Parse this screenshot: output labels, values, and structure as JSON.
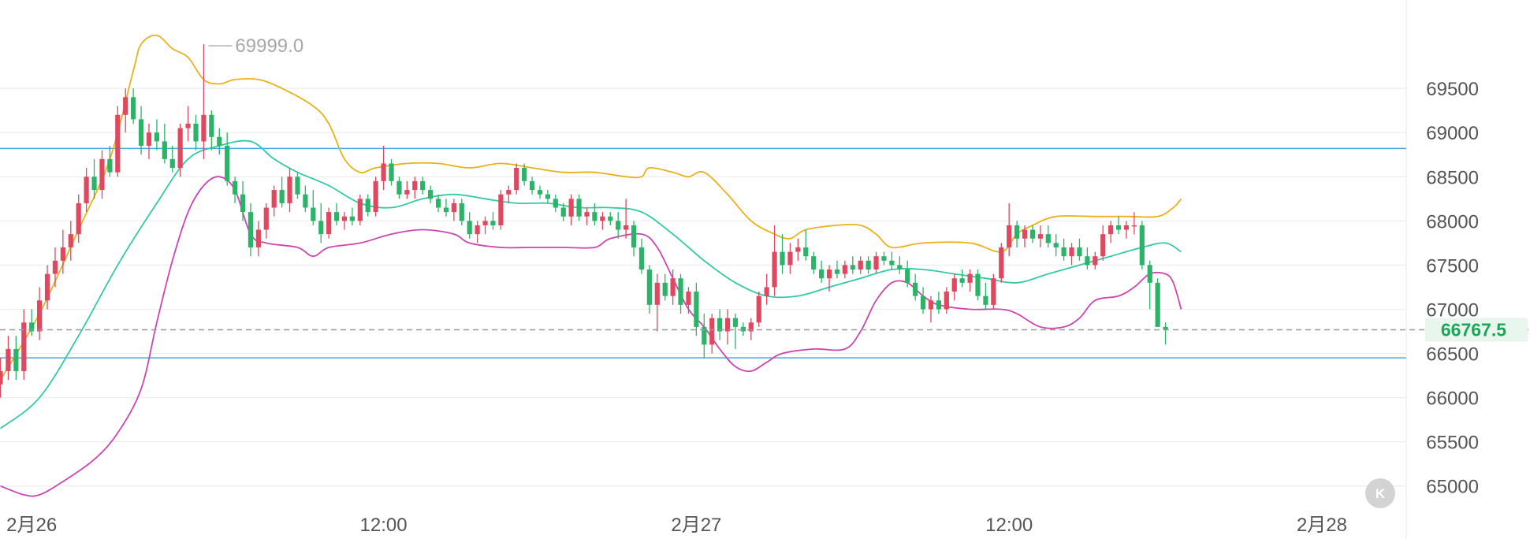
{
  "chart_data": {
    "type": "candlestick",
    "title": "",
    "ylim": [
      64400,
      70500
    ],
    "y_ticks": [
      65000,
      65500,
      66000,
      66500,
      67000,
      67500,
      68000,
      68500,
      69000,
      69500
    ],
    "y_tick_labels": [
      "65000",
      "65500",
      "66000",
      "66500",
      "67000",
      "67500",
      "68000",
      "68500",
      "69000",
      "69500"
    ],
    "x_ticks": [
      {
        "label": "2月26",
        "index": 4
      },
      {
        "label": "12:00",
        "index": 49
      },
      {
        "label": "2月27",
        "index": 89
      },
      {
        "label": "12:00",
        "index": 129
      },
      {
        "label": "2月28",
        "index": 169
      }
    ],
    "high_marker": {
      "label": "69999.0",
      "value": 69999.0,
      "index": 26
    },
    "last_price": {
      "label": "66767.5",
      "value": 66767.5
    },
    "horizontal_lines": [
      68820,
      66450
    ],
    "colors": {
      "up": "#e0485f",
      "down": "#2bb468",
      "upper_band": "#e8b21a",
      "middle_band": "#33c9a6",
      "lower_band": "#cc46b2",
      "hline": "#4aa8e0",
      "price_tag_bg": "#e8f6ee",
      "price_tag_text": "#1fa55a",
      "grid": "#eeeeee"
    },
    "candles": [
      [
        66150,
        66450,
        66000,
        66300
      ],
      [
        66300,
        66700,
        66200,
        66550
      ],
      [
        66550,
        66700,
        66200,
        66300
      ],
      [
        66300,
        67000,
        66200,
        66850
      ],
      [
        66850,
        67000,
        66700,
        66750
      ],
      [
        66750,
        67250,
        66650,
        67100
      ],
      [
        67100,
        67500,
        67000,
        67400
      ],
      [
        67400,
        67700,
        67250,
        67550
      ],
      [
        67550,
        67900,
        67400,
        67700
      ],
      [
        67700,
        68000,
        67550,
        67850
      ],
      [
        67850,
        68300,
        67750,
        68200
      ],
      [
        68200,
        68600,
        68100,
        68500
      ],
      [
        68500,
        68700,
        68250,
        68350
      ],
      [
        68350,
        68800,
        68250,
        68700
      ],
      [
        68700,
        68850,
        68500,
        68550
      ],
      [
        68550,
        69300,
        68500,
        69200
      ],
      [
        69200,
        69500,
        69000,
        69400
      ],
      [
        69400,
        69500,
        69100,
        69150
      ],
      [
        69150,
        69300,
        68750,
        68850
      ],
      [
        68850,
        69100,
        68700,
        69000
      ],
      [
        69000,
        69150,
        68800,
        68900
      ],
      [
        68900,
        69100,
        68650,
        68700
      ],
      [
        68700,
        68850,
        68550,
        68600
      ],
      [
        68600,
        69100,
        68500,
        69050
      ],
      [
        69050,
        69300,
        68900,
        69100
      ],
      [
        69100,
        69200,
        68800,
        68900
      ],
      [
        68900,
        69999,
        68700,
        69200
      ],
      [
        69200,
        69250,
        68800,
        68950
      ],
      [
        68950,
        69050,
        68750,
        68850
      ],
      [
        68850,
        69000,
        68400,
        68450
      ],
      [
        68450,
        68500,
        68200,
        68300
      ],
      [
        68300,
        68450,
        68000,
        68100
      ],
      [
        68100,
        68200,
        67600,
        67700
      ],
      [
        67700,
        68000,
        67600,
        67900
      ],
      [
        67900,
        68200,
        67800,
        68150
      ],
      [
        68150,
        68400,
        68050,
        68350
      ],
      [
        68350,
        68500,
        68150,
        68200
      ],
      [
        68200,
        68600,
        68100,
        68500
      ],
      [
        68500,
        68550,
        68250,
        68300
      ],
      [
        68300,
        68400,
        68100,
        68150
      ],
      [
        68150,
        68350,
        67950,
        68000
      ],
      [
        68000,
        68200,
        67750,
        67850
      ],
      [
        67850,
        68150,
        67800,
        68100
      ],
      [
        68100,
        68200,
        67950,
        68000
      ],
      [
        68000,
        68100,
        67900,
        68050
      ],
      [
        68050,
        68150,
        67950,
        68000
      ],
      [
        68000,
        68300,
        67950,
        68250
      ],
      [
        68250,
        68300,
        68050,
        68100
      ],
      [
        68100,
        68500,
        68050,
        68450
      ],
      [
        68450,
        68850,
        68350,
        68650
      ],
      [
        68650,
        68700,
        68400,
        68450
      ],
      [
        68450,
        68500,
        68250,
        68300
      ],
      [
        68300,
        68450,
        68250,
        68350
      ],
      [
        68350,
        68500,
        68250,
        68450
      ],
      [
        68450,
        68500,
        68300,
        68350
      ],
      [
        68350,
        68400,
        68200,
        68250
      ],
      [
        68250,
        68300,
        68100,
        68150
      ],
      [
        68150,
        68250,
        68050,
        68100
      ],
      [
        68100,
        68250,
        68000,
        68200
      ],
      [
        68200,
        68250,
        67950,
        68000
      ],
      [
        68000,
        68100,
        67800,
        67850
      ],
      [
        67850,
        68000,
        67750,
        67950
      ],
      [
        67950,
        68050,
        67850,
        68000
      ],
      [
        68000,
        68100,
        67900,
        67950
      ],
      [
        67950,
        68350,
        67900,
        68300
      ],
      [
        68300,
        68400,
        68200,
        68350
      ],
      [
        68350,
        68650,
        68300,
        68600
      ],
      [
        68600,
        68650,
        68400,
        68450
      ],
      [
        68450,
        68500,
        68300,
        68350
      ],
      [
        68350,
        68400,
        68250,
        68300
      ],
      [
        68300,
        68350,
        68200,
        68250
      ],
      [
        68250,
        68300,
        68100,
        68150
      ],
      [
        68150,
        68200,
        68000,
        68050
      ],
      [
        68050,
        68300,
        67950,
        68250
      ],
      [
        68250,
        68300,
        68000,
        68050
      ],
      [
        68050,
        68150,
        67950,
        68100
      ],
      [
        68100,
        68200,
        67950,
        68000
      ],
      [
        68000,
        68100,
        67900,
        68050
      ],
      [
        68050,
        68100,
        67950,
        68000
      ],
      [
        68000,
        68100,
        67800,
        67900
      ],
      [
        67900,
        68250,
        67800,
        67950
      ],
      [
        67950,
        68000,
        67600,
        67700
      ],
      [
        67700,
        67800,
        67400,
        67450
      ],
      [
        67450,
        67500,
        66950,
        67050
      ],
      [
        67050,
        67400,
        66750,
        67300
      ],
      [
        67300,
        67400,
        67100,
        67150
      ],
      [
        67150,
        67450,
        67050,
        67350
      ],
      [
        67350,
        67400,
        66950,
        67050
      ],
      [
        67050,
        67250,
        66950,
        67200
      ],
      [
        67200,
        67300,
        66700,
        66800
      ],
      [
        66800,
        66950,
        66450,
        66600
      ],
      [
        66600,
        66950,
        66500,
        66900
      ],
      [
        66900,
        67000,
        66650,
        66750
      ],
      [
        66750,
        67000,
        66600,
        66900
      ],
      [
        66900,
        66950,
        66550,
        66800
      ],
      [
        66800,
        66850,
        66700,
        66750
      ],
      [
        66750,
        66900,
        66650,
        66850
      ],
      [
        66850,
        67200,
        66800,
        67150
      ],
      [
        67150,
        67400,
        67050,
        67250
      ],
      [
        67250,
        67950,
        67150,
        67650
      ],
      [
        67650,
        67850,
        67400,
        67500
      ],
      [
        67500,
        67750,
        67400,
        67650
      ],
      [
        67650,
        67800,
        67550,
        67700
      ],
      [
        67700,
        67900,
        67550,
        67600
      ],
      [
        67600,
        67650,
        67400,
        67450
      ],
      [
        67450,
        67550,
        67300,
        67350
      ],
      [
        67350,
        67500,
        67200,
        67450
      ],
      [
        67450,
        67550,
        67350,
        67400
      ],
      [
        67400,
        67550,
        67350,
        67500
      ],
      [
        67500,
        67600,
        67400,
        67450
      ],
      [
        67450,
        67600,
        67400,
        67550
      ],
      [
        67550,
        67600,
        67400,
        67450
      ],
      [
        67450,
        67650,
        67400,
        67600
      ],
      [
        67600,
        67650,
        67500,
        67550
      ],
      [
        67550,
        67650,
        67450,
        67500
      ],
      [
        67500,
        67600,
        67400,
        67450
      ],
      [
        67450,
        67550,
        67250,
        67300
      ],
      [
        67300,
        67400,
        67100,
        67150
      ],
      [
        67150,
        67250,
        66950,
        67000
      ],
      [
        67000,
        67150,
        66850,
        67100
      ],
      [
        67100,
        67200,
        66950,
        67000
      ],
      [
        67000,
        67250,
        66950,
        67200
      ],
      [
        67200,
        67400,
        67100,
        67350
      ],
      [
        67350,
        67450,
        67250,
        67300
      ],
      [
        67300,
        67450,
        67200,
        67400
      ],
      [
        67400,
        67450,
        67100,
        67150
      ],
      [
        67150,
        67300,
        67000,
        67050
      ],
      [
        67050,
        67400,
        67000,
        67350
      ],
      [
        67350,
        67750,
        67300,
        67700
      ],
      [
        67700,
        68200,
        67600,
        67950
      ],
      [
        67950,
        68000,
        67700,
        67800
      ],
      [
        67800,
        67950,
        67700,
        67900
      ],
      [
        67900,
        67950,
        67750,
        67800
      ],
      [
        67800,
        67950,
        67700,
        67850
      ],
      [
        67850,
        67950,
        67700,
        67750
      ],
      [
        67750,
        67850,
        67600,
        67700
      ],
      [
        67700,
        67800,
        67550,
        67600
      ],
      [
        67600,
        67750,
        67500,
        67700
      ],
      [
        67700,
        67800,
        67550,
        67600
      ],
      [
        67600,
        67700,
        67450,
        67500
      ],
      [
        67500,
        67650,
        67450,
        67600
      ],
      [
        67600,
        67950,
        67550,
        67850
      ],
      [
        67850,
        68000,
        67750,
        67950
      ],
      [
        67950,
        68050,
        67850,
        67900
      ],
      [
        67900,
        68000,
        67800,
        67950
      ],
      [
        67950,
        68100,
        67850,
        67950
      ],
      [
        67950,
        68000,
        67450,
        67500
      ],
      [
        67500,
        67550,
        67000,
        67300
      ],
      [
        67300,
        67350,
        66800,
        66800
      ],
      [
        66800,
        66850,
        66600,
        66767.5
      ]
    ],
    "upper_band": [
      [
        0,
        66200
      ],
      [
        5,
        66950
      ],
      [
        10,
        67900
      ],
      [
        14,
        68700
      ],
      [
        17,
        69700
      ],
      [
        18,
        70000
      ],
      [
        20,
        70100
      ],
      [
        22,
        69950
      ],
      [
        24,
        69850
      ],
      [
        26,
        69600
      ],
      [
        28,
        69550
      ],
      [
        30,
        69600
      ],
      [
        33,
        69600
      ],
      [
        36,
        69500
      ],
      [
        40,
        69300
      ],
      [
        42,
        69100
      ],
      [
        44,
        68700
      ],
      [
        46,
        68550
      ],
      [
        48,
        68600
      ],
      [
        52,
        68650
      ],
      [
        56,
        68650
      ],
      [
        60,
        68600
      ],
      [
        64,
        68650
      ],
      [
        68,
        68600
      ],
      [
        72,
        68550
      ],
      [
        76,
        68550
      ],
      [
        80,
        68500
      ],
      [
        82,
        68500
      ],
      [
        83,
        68600
      ],
      [
        86,
        68550
      ],
      [
        88,
        68500
      ],
      [
        90,
        68550
      ],
      [
        93,
        68300
      ],
      [
        96,
        68000
      ],
      [
        99,
        67850
      ],
      [
        101,
        67800
      ],
      [
        103,
        67900
      ],
      [
        107,
        67950
      ],
      [
        110,
        67950
      ],
      [
        112,
        67850
      ],
      [
        114,
        67700
      ],
      [
        118,
        67750
      ],
      [
        124,
        67750
      ],
      [
        128,
        67650
      ],
      [
        130,
        67850
      ],
      [
        132,
        67950
      ],
      [
        135,
        68050
      ],
      [
        140,
        68050
      ],
      [
        144,
        68050
      ],
      [
        148,
        68050
      ],
      [
        150,
        68150
      ],
      [
        151,
        68250
      ]
    ],
    "middle_band": [
      [
        0,
        65650
      ],
      [
        5,
        66000
      ],
      [
        10,
        66700
      ],
      [
        15,
        67500
      ],
      [
        20,
        68200
      ],
      [
        24,
        68700
      ],
      [
        28,
        68850
      ],
      [
        32,
        68900
      ],
      [
        35,
        68700
      ],
      [
        38,
        68550
      ],
      [
        42,
        68400
      ],
      [
        46,
        68200
      ],
      [
        50,
        68150
      ],
      [
        54,
        68250
      ],
      [
        58,
        68300
      ],
      [
        62,
        68250
      ],
      [
        66,
        68200
      ],
      [
        70,
        68200
      ],
      [
        74,
        68150
      ],
      [
        78,
        68150
      ],
      [
        82,
        68100
      ],
      [
        86,
        67850
      ],
      [
        90,
        67550
      ],
      [
        94,
        67300
      ],
      [
        98,
        67150
      ],
      [
        102,
        67150
      ],
      [
        106,
        67250
      ],
      [
        110,
        67350
      ],
      [
        114,
        67450
      ],
      [
        118,
        67450
      ],
      [
        122,
        67400
      ],
      [
        126,
        67350
      ],
      [
        130,
        67300
      ],
      [
        134,
        67400
      ],
      [
        138,
        67500
      ],
      [
        142,
        67600
      ],
      [
        146,
        67700
      ],
      [
        149,
        67750
      ],
      [
        151,
        67650
      ]
    ],
    "lower_band": [
      [
        0,
        65000
      ],
      [
        3,
        64900
      ],
      [
        5,
        64900
      ],
      [
        8,
        65050
      ],
      [
        12,
        65300
      ],
      [
        15,
        65600
      ],
      [
        18,
        66100
      ],
      [
        20,
        66850
      ],
      [
        22,
        67550
      ],
      [
        24,
        68100
      ],
      [
        26,
        68400
      ],
      [
        28,
        68500
      ],
      [
        30,
        68350
      ],
      [
        32,
        67850
      ],
      [
        34,
        67750
      ],
      [
        38,
        67700
      ],
      [
        40,
        67600
      ],
      [
        42,
        67700
      ],
      [
        46,
        67750
      ],
      [
        50,
        67850
      ],
      [
        54,
        67900
      ],
      [
        58,
        67850
      ],
      [
        60,
        67750
      ],
      [
        64,
        67700
      ],
      [
        68,
        67700
      ],
      [
        72,
        67700
      ],
      [
        76,
        67700
      ],
      [
        78,
        67800
      ],
      [
        82,
        67850
      ],
      [
        84,
        67700
      ],
      [
        86,
        67350
      ],
      [
        88,
        67000
      ],
      [
        90,
        66800
      ],
      [
        92,
        66550
      ],
      [
        94,
        66350
      ],
      [
        96,
        66300
      ],
      [
        98,
        66400
      ],
      [
        100,
        66500
      ],
      [
        104,
        66550
      ],
      [
        108,
        66550
      ],
      [
        110,
        66750
      ],
      [
        112,
        67100
      ],
      [
        114,
        67300
      ],
      [
        116,
        67300
      ],
      [
        118,
        67150
      ],
      [
        120,
        67050
      ],
      [
        124,
        67000
      ],
      [
        128,
        67000
      ],
      [
        130,
        66950
      ],
      [
        133,
        66800
      ],
      [
        136,
        66800
      ],
      [
        138,
        66900
      ],
      [
        140,
        67100
      ],
      [
        143,
        67150
      ],
      [
        145,
        67250
      ],
      [
        147,
        67400
      ],
      [
        149,
        67400
      ],
      [
        150,
        67300
      ],
      [
        151,
        67000
      ]
    ]
  }
}
